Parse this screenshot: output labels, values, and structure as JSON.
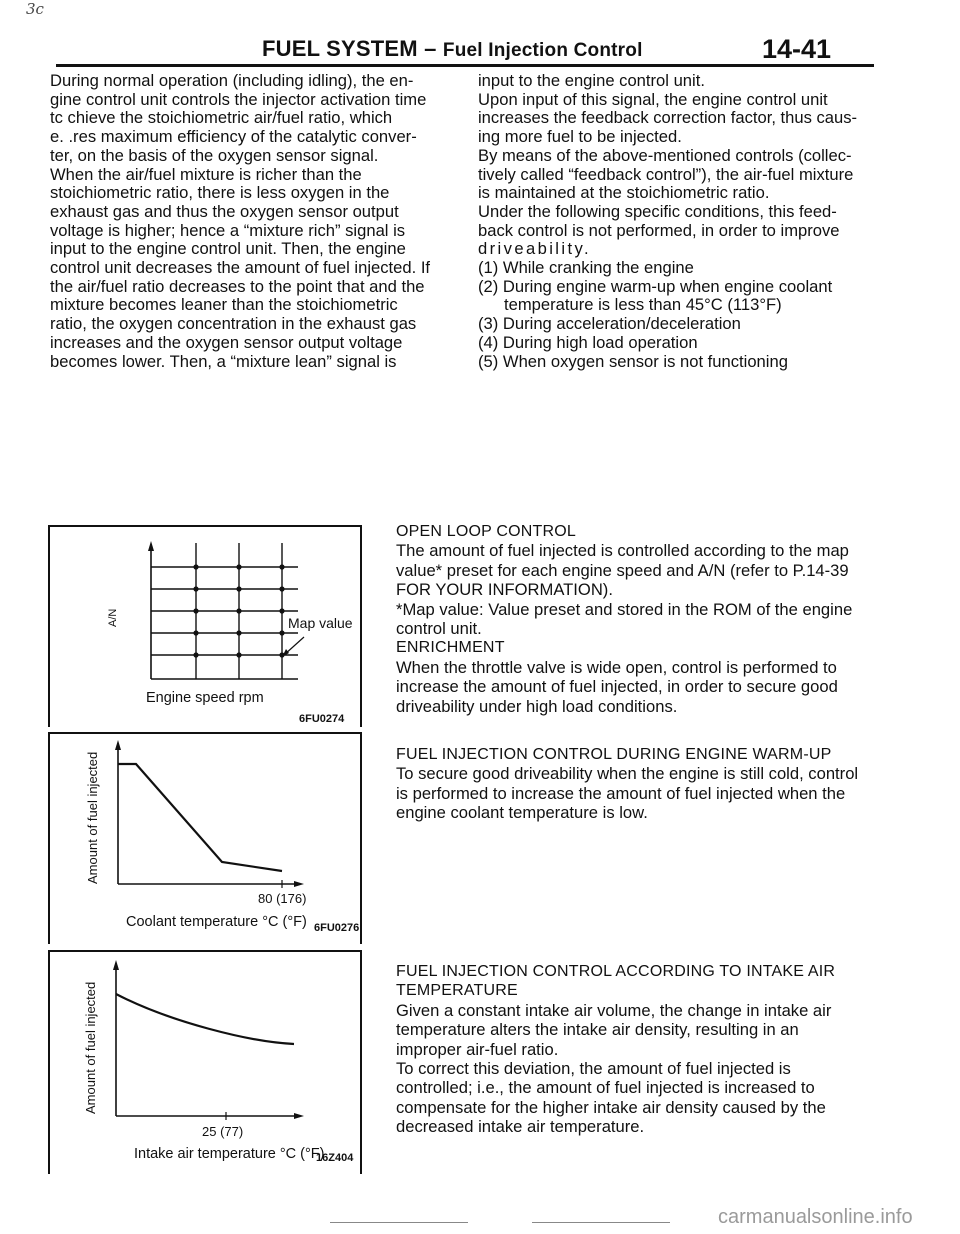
{
  "corner_mark": "3c",
  "header": {
    "section": "FUEL SYSTEM",
    "dash": "–",
    "subsection": "Fuel Injection Control",
    "page_number": "14-41"
  },
  "left_column": [
    "During normal operation (including idling), the en-",
    "gine control unit controls the injector activation time",
    "tc  chieve the stoichiometric air/fuel ratio, which",
    "e.  .res maximum efficiency of the catalytic conver-",
    "ter, on the basis of the oxygen sensor signal.",
    "When the air/fuel mixture is richer than the",
    "stoichiometric ratio, there is less oxygen in the",
    "exhaust gas and thus the oxygen sensor output",
    "voltage is higher; hence a “mixture rich” signal is",
    "input to the engine control unit. Then, the engine",
    "control unit decreases the amount of fuel injected. If",
    "the air/fuel ratio decreases to the point that and the",
    "mixture becomes leaner than the stoichiometric",
    "ratio, the oxygen concentration in the exhaust gas",
    "increases and the oxygen sensor output voltage",
    "becomes lower. Then, a “mixture lean” signal is"
  ],
  "right_column": {
    "paragraphs": [
      "input to the engine control unit.",
      "Upon input of this signal, the engine control unit",
      "increases the feedback correction factor, thus caus-",
      "ing more fuel to be injected.",
      "By means of the above-mentioned controls (collec-",
      "tively called “feedback control”), the air-fuel mixture",
      "is maintained at the stoichiometric ratio.",
      "Under the following specific conditions, this feed-",
      "back control is not performed, in order to improve",
      "driveability."
    ],
    "conditions": [
      {
        "num": "(1)",
        "text": "While cranking the engine"
      },
      {
        "num": "(2)",
        "text": "During engine warm-up when engine coolant"
      },
      {
        "num": "",
        "text": "temperature is less than 45°C (113°F)"
      },
      {
        "num": "(3)",
        "text": "During acceleration/deceleration"
      },
      {
        "num": "(4)",
        "text": "During high load operation"
      },
      {
        "num": "(5)",
        "text": "When oxygen sensor is not functioning"
      }
    ]
  },
  "figures": {
    "map": {
      "y_label": "A/N",
      "map_value_label": "Map value",
      "x_label": "Engine speed rpm",
      "code": "6FU0274"
    },
    "coolant": {
      "y_label": "Amount of fuel injected",
      "tick_label": "80 (176)",
      "x_label": "Coolant temperature °C (°F)",
      "code": "6FU0276"
    },
    "intake": {
      "y_label": "Amount of fuel injected",
      "tick_label": "25 (77)",
      "x_label": "Intake air temperature °C (°F)",
      "code": "16Z404"
    }
  },
  "sections": {
    "open_loop": [
      "OPEN LOOP CONTROL",
      "The amount of fuel injected is controlled according to the map",
      "value* preset for each engine speed and A/N (refer to P.14-39",
      "FOR YOUR INFORMATION).",
      "*Map value: Value preset and stored in the ROM of the engine",
      "control unit.",
      "ENRICHMENT",
      "When the throttle valve is wide open, control is performed to",
      "increase the amount of fuel injected, in order to secure good",
      "driveability under high load conditions."
    ],
    "warmup": [
      "FUEL INJECTION CONTROL DURING ENGINE WARM-UP",
      "To secure good driveability when the engine is still cold, control",
      "is performed to increase the amount of fuel injected when the",
      "engine coolant temperature is low."
    ],
    "intake_air": [
      "FUEL INJECTION CONTROL ACCORDING TO INTAKE AIR",
      "TEMPERATURE",
      "Given a constant intake air volume, the change in intake air",
      "temperature alters the intake air density, resulting in an",
      "improper air-fuel ratio.",
      "To correct this deviation, the amount of fuel injected is",
      "controlled; i.e., the amount of fuel injected is increased to",
      "compensate for the higher intake air density caused by the",
      "decreased intake air temperature."
    ]
  },
  "footer": {
    "watermark": "carmanualsonline.info"
  }
}
